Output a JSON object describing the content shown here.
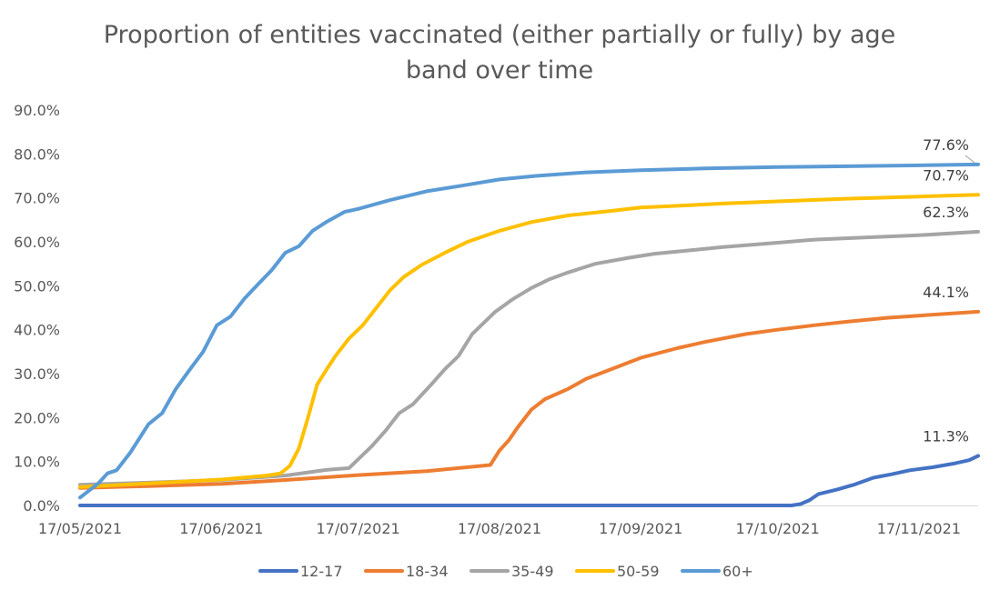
{
  "chart_data": {
    "type": "line",
    "title_lines": [
      "Proportion of entities vaccinated (either partially or fully) by age",
      "band over time"
    ],
    "x_axis": {
      "type": "date",
      "range": [
        "2021-05-17",
        "2021-11-30"
      ],
      "tick_dates": [
        "2021-05-17",
        "2021-06-17",
        "2021-07-17",
        "2021-08-17",
        "2021-09-17",
        "2021-10-17",
        "2021-11-17"
      ],
      "tick_labels": [
        "17/05/2021",
        "17/06/2021",
        "17/07/2021",
        "17/08/2021",
        "17/09/2021",
        "17/10/2021",
        "17/11/2021"
      ]
    },
    "y_axis": {
      "range": [
        0,
        90
      ],
      "tick_values": [
        0,
        10,
        20,
        30,
        40,
        50,
        60,
        70,
        80,
        90
      ],
      "tick_labels": [
        "0.0%",
        "10.0%",
        "20.0%",
        "30.0%",
        "40.0%",
        "50.0%",
        "60.0%",
        "70.0%",
        "80.0%",
        "90.0%"
      ]
    },
    "grid": false,
    "legend_position": "bottom",
    "series": [
      {
        "name": "12-17",
        "color": "#4472C4",
        "points": [
          [
            "2021-05-17",
            0
          ],
          [
            "2021-10-20",
            0
          ],
          [
            "2021-10-22",
            0.3
          ],
          [
            "2021-10-24",
            1.2
          ],
          [
            "2021-10-26",
            2.6
          ],
          [
            "2021-10-30",
            3.6
          ],
          [
            "2021-11-03",
            4.8
          ],
          [
            "2021-11-07",
            6.3
          ],
          [
            "2021-11-11",
            7.1
          ],
          [
            "2021-11-15",
            8.0
          ],
          [
            "2021-11-20",
            8.7
          ],
          [
            "2021-11-25",
            9.6
          ],
          [
            "2021-11-28",
            10.3
          ],
          [
            "2021-11-30",
            11.3
          ]
        ],
        "end_label": "11.3%"
      },
      {
        "name": "18-34",
        "color": "#ED7D31",
        "points": [
          [
            "2021-05-17",
            4.0
          ],
          [
            "2021-06-01",
            4.4
          ],
          [
            "2021-06-17",
            4.9
          ],
          [
            "2021-07-01",
            5.8
          ],
          [
            "2021-07-17",
            6.9
          ],
          [
            "2021-08-01",
            7.8
          ],
          [
            "2021-08-15",
            9.2
          ],
          [
            "2021-08-17",
            12.5
          ],
          [
            "2021-08-19",
            14.8
          ],
          [
            "2021-08-21",
            17.8
          ],
          [
            "2021-08-24",
            21.8
          ],
          [
            "2021-08-27",
            24.2
          ],
          [
            "2021-09-01",
            26.5
          ],
          [
            "2021-09-05",
            28.8
          ],
          [
            "2021-09-10",
            30.8
          ],
          [
            "2021-09-17",
            33.6
          ],
          [
            "2021-09-25",
            35.8
          ],
          [
            "2021-10-01",
            37.2
          ],
          [
            "2021-10-10",
            39.0
          ],
          [
            "2021-10-17",
            40.0
          ],
          [
            "2021-10-25",
            41.0
          ],
          [
            "2021-11-01",
            41.8
          ],
          [
            "2021-11-10",
            42.7
          ],
          [
            "2021-11-17",
            43.2
          ],
          [
            "2021-11-30",
            44.1
          ]
        ],
        "end_label": "44.1%"
      },
      {
        "name": "35-49",
        "color": "#A5A5A5",
        "points": [
          [
            "2021-05-17",
            4.7
          ],
          [
            "2021-06-01",
            5.2
          ],
          [
            "2021-06-17",
            5.8
          ],
          [
            "2021-07-01",
            6.8
          ],
          [
            "2021-07-10",
            8.1
          ],
          [
            "2021-07-15",
            8.5
          ],
          [
            "2021-07-18",
            11.5
          ],
          [
            "2021-07-20",
            13.5
          ],
          [
            "2021-07-23",
            17.0
          ],
          [
            "2021-07-26",
            21.0
          ],
          [
            "2021-07-29",
            23.0
          ],
          [
            "2021-08-02",
            27.5
          ],
          [
            "2021-08-05",
            31.0
          ],
          [
            "2021-08-08",
            34.0
          ],
          [
            "2021-08-11",
            39.0
          ],
          [
            "2021-08-13",
            41.0
          ],
          [
            "2021-08-16",
            44.0
          ],
          [
            "2021-08-20",
            47.0
          ],
          [
            "2021-08-24",
            49.5
          ],
          [
            "2021-08-28",
            51.5
          ],
          [
            "2021-09-01",
            53.0
          ],
          [
            "2021-09-07",
            55.0
          ],
          [
            "2021-09-14",
            56.3
          ],
          [
            "2021-09-20",
            57.3
          ],
          [
            "2021-09-27",
            58.0
          ],
          [
            "2021-10-05",
            58.8
          ],
          [
            "2021-10-17",
            59.8
          ],
          [
            "2021-10-25",
            60.5
          ],
          [
            "2021-11-05",
            61.0
          ],
          [
            "2021-11-17",
            61.5
          ],
          [
            "2021-11-30",
            62.3
          ]
        ],
        "end_label": "62.3%"
      },
      {
        "name": "50-59",
        "color": "#FFC000",
        "points": [
          [
            "2021-05-17",
            4.2
          ],
          [
            "2021-06-01",
            5.0
          ],
          [
            "2021-06-17",
            5.9
          ],
          [
            "2021-06-27",
            6.8
          ],
          [
            "2021-06-30",
            7.3
          ],
          [
            "2021-07-02",
            9.0
          ],
          [
            "2021-07-04",
            13.0
          ],
          [
            "2021-07-06",
            20.0
          ],
          [
            "2021-07-08",
            27.5
          ],
          [
            "2021-07-10",
            30.8
          ],
          [
            "2021-07-12",
            34.0
          ],
          [
            "2021-07-15",
            38.0
          ],
          [
            "2021-07-18",
            41.0
          ],
          [
            "2021-07-21",
            45.0
          ],
          [
            "2021-07-24",
            49.0
          ],
          [
            "2021-07-27",
            52.0
          ],
          [
            "2021-07-31",
            54.8
          ],
          [
            "2021-08-05",
            57.5
          ],
          [
            "2021-08-10",
            60.0
          ],
          [
            "2021-08-17",
            62.5
          ],
          [
            "2021-08-24",
            64.5
          ],
          [
            "2021-09-01",
            66.0
          ],
          [
            "2021-09-10",
            67.0
          ],
          [
            "2021-09-17",
            67.8
          ],
          [
            "2021-09-25",
            68.2
          ],
          [
            "2021-10-05",
            68.7
          ],
          [
            "2021-10-17",
            69.2
          ],
          [
            "2021-11-01",
            69.8
          ],
          [
            "2021-11-17",
            70.3
          ],
          [
            "2021-11-30",
            70.7
          ]
        ],
        "end_label": "70.7%"
      },
      {
        "name": "60+",
        "color": "#5B9BD5",
        "points": [
          [
            "2021-05-17",
            1.8
          ],
          [
            "2021-05-21",
            5.0
          ],
          [
            "2021-05-23",
            7.3
          ],
          [
            "2021-05-25",
            8.0
          ],
          [
            "2021-05-28",
            12.0
          ],
          [
            "2021-06-01",
            18.5
          ],
          [
            "2021-06-04",
            21.0
          ],
          [
            "2021-06-07",
            26.5
          ],
          [
            "2021-06-10",
            30.8
          ],
          [
            "2021-06-13",
            35.0
          ],
          [
            "2021-06-16",
            41.0
          ],
          [
            "2021-06-19",
            43.0
          ],
          [
            "2021-06-22",
            47.0
          ],
          [
            "2021-06-25",
            50.3
          ],
          [
            "2021-06-28",
            53.5
          ],
          [
            "2021-07-01",
            57.5
          ],
          [
            "2021-07-04",
            59.0
          ],
          [
            "2021-07-07",
            62.5
          ],
          [
            "2021-07-10",
            64.5
          ],
          [
            "2021-07-14",
            66.8
          ],
          [
            "2021-07-17",
            67.5
          ],
          [
            "2021-07-24",
            69.5
          ],
          [
            "2021-08-01",
            71.5
          ],
          [
            "2021-08-10",
            73.0
          ],
          [
            "2021-08-17",
            74.2
          ],
          [
            "2021-08-25",
            75.0
          ],
          [
            "2021-09-05",
            75.8
          ],
          [
            "2021-09-17",
            76.3
          ],
          [
            "2021-10-01",
            76.7
          ],
          [
            "2021-10-17",
            77.0
          ],
          [
            "2021-11-01",
            77.2
          ],
          [
            "2021-11-17",
            77.4
          ],
          [
            "2021-11-30",
            77.6
          ]
        ],
        "end_label": "77.6%"
      }
    ]
  }
}
